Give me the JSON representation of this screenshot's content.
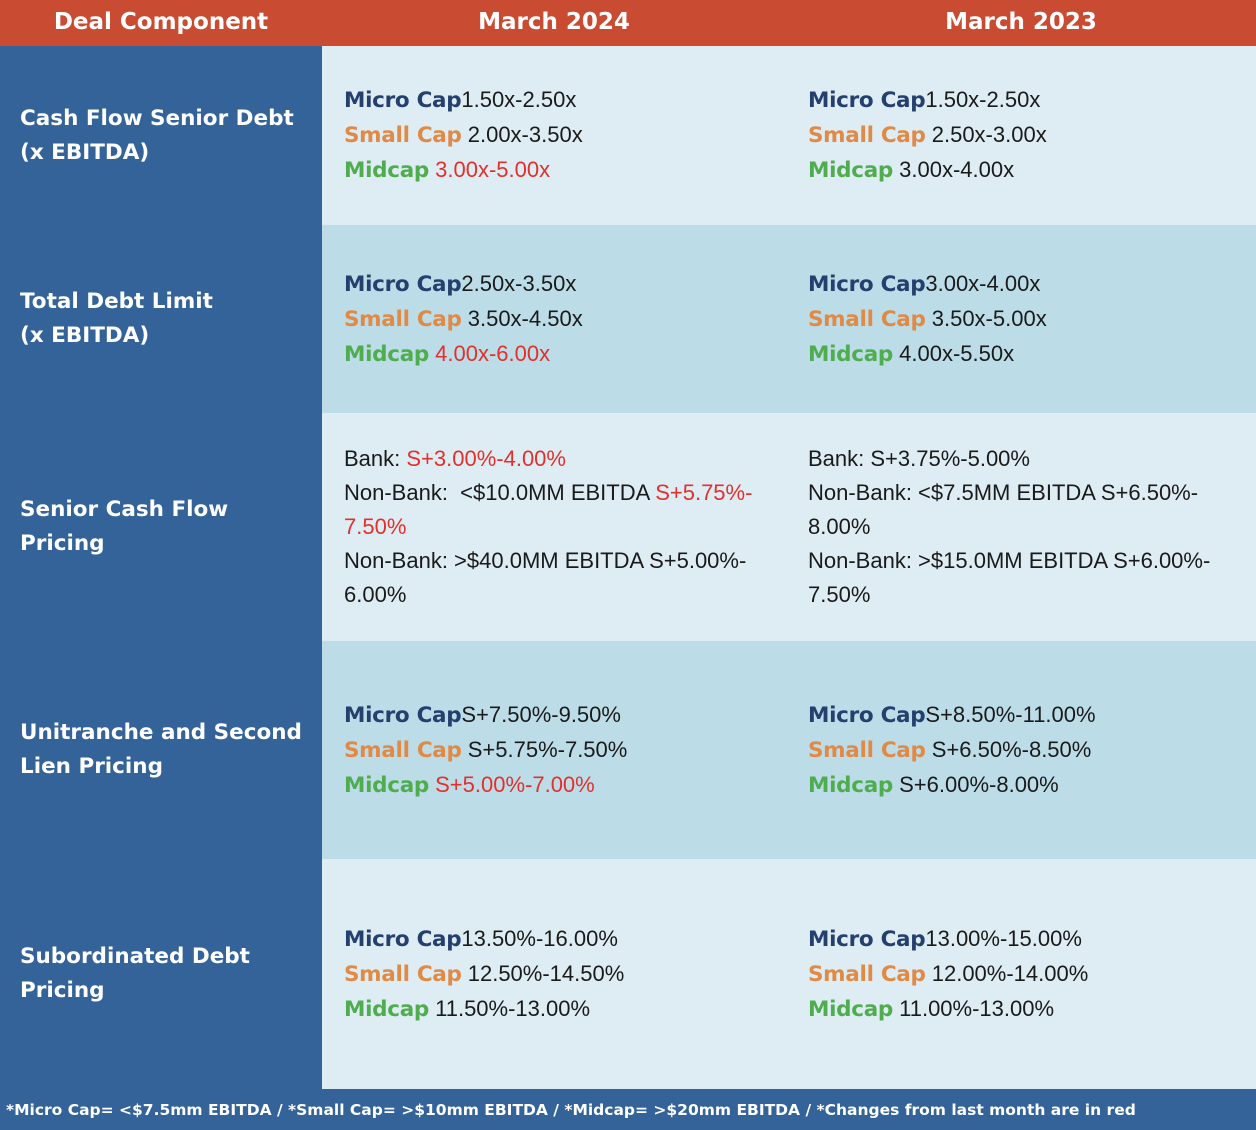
{
  "header": {
    "col0": "Deal Component",
    "col1": "March 2024",
    "col2": "March 2023"
  },
  "colors": {
    "header_bg": "#c94b32",
    "label_bg": "#336398",
    "row_light": "#deecf3",
    "row_dark": "#bcdde7",
    "micro_cap": "#24406e",
    "small_cap": "#e08a48",
    "midcap": "#4fad50",
    "change_red": "#e2302c"
  },
  "rows": [
    {
      "label": "Cash Flow Senior Debt\n(x EBITDA)",
      "march_2024": [
        {
          "key": "Micro Cap",
          "value": "1.50x-2.50x",
          "changed": false
        },
        {
          "key": "Small Cap",
          "value": "2.00x-3.50x",
          "changed": false
        },
        {
          "key": "Midcap",
          "value": "3.00x-5.00x",
          "changed": true
        }
      ],
      "march_2023": [
        {
          "key": "Micro Cap",
          "value": "1.50x-2.50x",
          "changed": false
        },
        {
          "key": "Small Cap",
          "value": "2.50x-3.00x",
          "changed": false
        },
        {
          "key": "Midcap",
          "value": "3.00x-4.00x",
          "changed": false
        }
      ]
    },
    {
      "label": "Total Debt Limit\n(x EBITDA)",
      "march_2024": [
        {
          "key": "Micro Cap",
          "value": "2.50x-3.50x",
          "changed": false
        },
        {
          "key": "Small Cap",
          "value": "3.50x-4.50x",
          "changed": false
        },
        {
          "key": "Midcap",
          "value": "4.00x-6.00x",
          "changed": true
        }
      ],
      "march_2023": [
        {
          "key": "Micro Cap",
          "value": "3.00x-4.00x",
          "changed": false
        },
        {
          "key": "Small Cap",
          "value": "3.50x-5.00x",
          "changed": false
        },
        {
          "key": "Midcap",
          "value": "4.00x-5.50x",
          "changed": false
        }
      ]
    },
    {
      "label": "Senior Cash Flow Pricing",
      "march_2024": {
        "bank_prefix": "Bank: ",
        "bank_value": "S+3.00%-4.00%",
        "nonbank1_prefix": "Non-Bank:  <$10.0MM EBITDA ",
        "nonbank1_value_a": "S+5.75%-",
        "nonbank1_value_b": "7.50%",
        "nonbank2_line_a": "Non-Bank: >$40.0MM EBITDA S+5.00%-",
        "nonbank2_line_b": "6.00%"
      },
      "march_2023": {
        "bank_line": "Bank: S+3.75%-5.00%",
        "nonbank1_line_a": "Non-Bank: <$7.5MM EBITDA S+6.50%-",
        "nonbank1_line_b": "8.00%",
        "nonbank2_line_a": "Non-Bank: >$15.0MM EBITDA S+6.00%-",
        "nonbank2_line_b": "7.50%"
      }
    },
    {
      "label": "Unitranche and Second\nLien Pricing",
      "march_2024": [
        {
          "key": "Micro Cap",
          "value": "S+7.50%-9.50%",
          "changed": false
        },
        {
          "key": "Small Cap",
          "value": "S+5.75%-7.50%",
          "changed": false
        },
        {
          "key": "Midcap",
          "value": "S+5.00%-7.00%",
          "changed": true
        }
      ],
      "march_2023": [
        {
          "key": "Micro Cap",
          "value": "S+8.50%-11.00%",
          "changed": false
        },
        {
          "key": "Small Cap",
          "value": "S+6.50%-8.50%",
          "changed": false
        },
        {
          "key": "Midcap",
          "value": "S+6.00%-8.00%",
          "changed": false
        }
      ]
    },
    {
      "label": "Subordinated Debt\nPricing",
      "march_2024": [
        {
          "key": "Micro Cap",
          "value": "13.50%-16.00%",
          "changed": false
        },
        {
          "key": "Small Cap",
          "value": "12.50%-14.50%",
          "changed": false
        },
        {
          "key": "Midcap",
          "value": "11.50%-13.00%",
          "changed": false
        }
      ],
      "march_2023": [
        {
          "key": "Micro Cap",
          "value": "13.00%-15.00%",
          "changed": false
        },
        {
          "key": "Small Cap",
          "value": "12.00%-14.00%",
          "changed": false
        },
        {
          "key": "Midcap",
          "value": "11.00%-13.00%",
          "changed": false
        }
      ]
    }
  ],
  "footer": "*Micro Cap= <$7.5mm EBITDA / *Small Cap= >$10mm EBITDA / *Midcap= >$20mm EBITDA / *Changes from last month are in red"
}
